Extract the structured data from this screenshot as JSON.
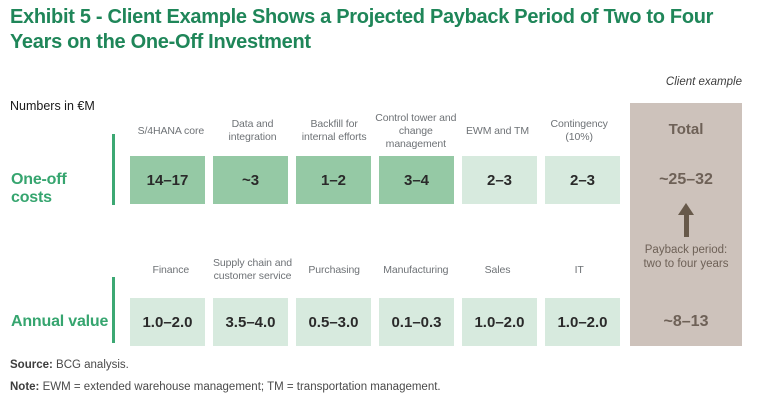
{
  "header": {
    "title": "Exhibit 5 - Client Example Shows a Projected Payback Period of Two to Four Years on the One-Off Investment",
    "context_tag": "Client example",
    "units": "Numbers in €M"
  },
  "chart_data": {
    "type": "table",
    "title": "Projected payback period of two to four years on the one-off investment",
    "units": "€M",
    "total_column_header": "Total",
    "payback_annotation": "Payback period: two to four years",
    "rows": [
      {
        "label": "One-off costs",
        "total": "~25–32",
        "columns": [
          {
            "header": "S/4HANA core",
            "value": "14–17",
            "emphasis": "medium"
          },
          {
            "header": "Data and integration",
            "value": "~3",
            "emphasis": "medium"
          },
          {
            "header": "Backfill for internal efforts",
            "value": "1–2",
            "emphasis": "medium"
          },
          {
            "header": "Control tower and change management",
            "value": "3–4",
            "emphasis": "medium"
          },
          {
            "header": "EWM and TM",
            "value": "2–3",
            "emphasis": "light"
          },
          {
            "header": "Contingency (10%)",
            "value": "2–3",
            "emphasis": "light"
          }
        ]
      },
      {
        "label": "Annual value",
        "total": "~8–13",
        "columns": [
          {
            "header": "Finance",
            "value": "1.0–2.0",
            "emphasis": "light"
          },
          {
            "header": "Supply chain and customer service",
            "value": "3.5–4.0",
            "emphasis": "light"
          },
          {
            "header": "Purchasing",
            "value": "0.5–3.0",
            "emphasis": "light"
          },
          {
            "header": "Manufacturing",
            "value": "0.1–0.3",
            "emphasis": "light"
          },
          {
            "header": "Sales",
            "value": "1.0–2.0",
            "emphasis": "light"
          },
          {
            "header": "IT",
            "value": "1.0–2.0",
            "emphasis": "light"
          }
        ]
      }
    ]
  },
  "colors": {
    "title_green": "#1F8659",
    "label_green": "#36A56F",
    "rule_green": "#3CA873",
    "box_medium_green": "#95C9A5",
    "box_light_green": "#D7EADE",
    "total_column_bg": "#CDC2BB",
    "total_text": "#6E6157",
    "arrow_brown": "#67594A",
    "header_gray": "#6E7276"
  },
  "footer": {
    "source_label": "Source:",
    "source_text": " BCG analysis.",
    "note_label": "Note:",
    "note_text": " EWM = extended warehouse management; TM = transportation management."
  }
}
